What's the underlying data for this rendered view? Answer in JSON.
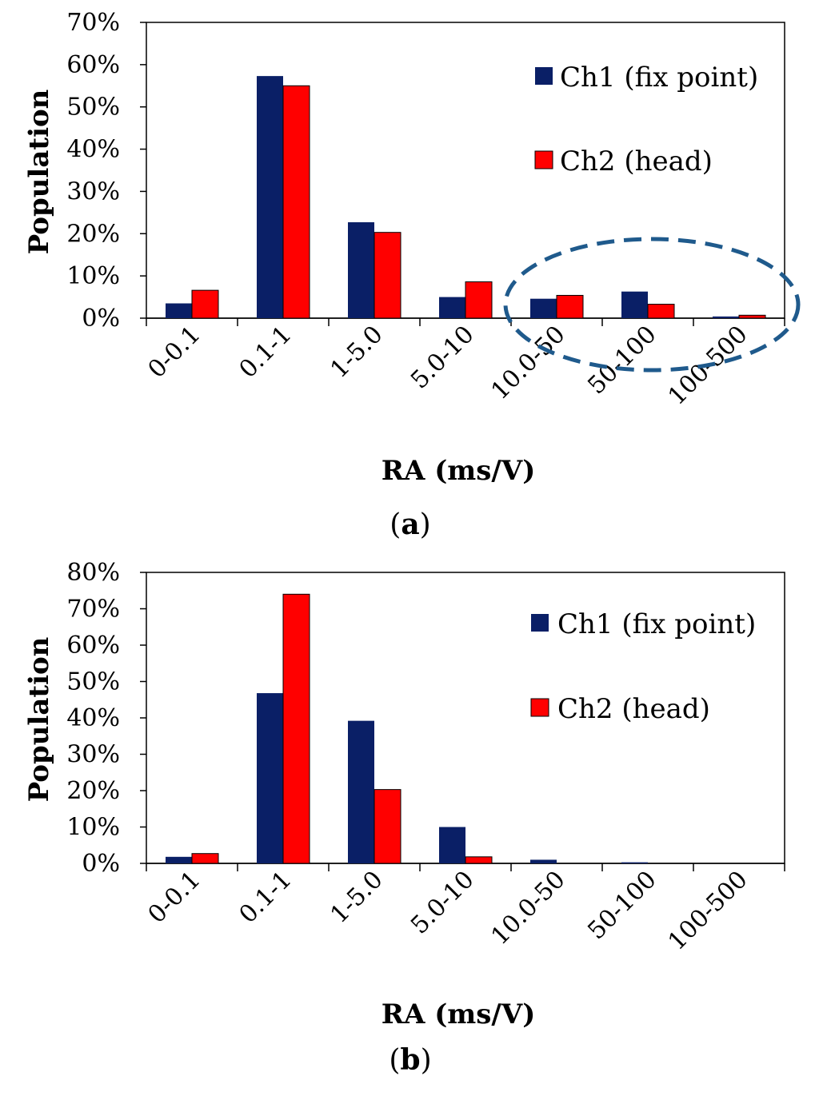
{
  "chart_data": [
    {
      "id": "a",
      "type": "bar",
      "caption_label": "a",
      "categories": [
        "0-0.1",
        "0.1-1",
        "1-5.0",
        "5.0-10",
        "10.0-50",
        "50-100",
        "100-500"
      ],
      "series": [
        {
          "name": "Ch1 (fix point)",
          "color": "#0a1f66",
          "values": [
            3.5,
            57.3,
            22.7,
            5.0,
            4.6,
            6.3,
            0.4
          ]
        },
        {
          "name": "Ch2 (head)",
          "color": "#ff0000",
          "values": [
            6.6,
            55.0,
            20.3,
            8.6,
            5.4,
            3.3,
            0.7
          ]
        }
      ],
      "yticks": [
        "0%",
        "10%",
        "20%",
        "30%",
        "40%",
        "50%",
        "60%",
        "70%"
      ],
      "ylim": [
        0,
        70
      ],
      "ylabel": "Population",
      "xlabel": "RA (ms/V)",
      "legend_position": "top-right",
      "annotation": "dashed ellipse highlighting 10.0-50, 50-100 and 100-500"
    },
    {
      "id": "b",
      "type": "bar",
      "caption_label": "b",
      "categories": [
        "0-0.1",
        "0.1-1",
        "1-5.0",
        "5.0-10",
        "10.0-50",
        "50-100",
        "100-500"
      ],
      "series": [
        {
          "name": "Ch1 (fix point)",
          "color": "#0a1f66",
          "values": [
            1.8,
            46.8,
            39.2,
            10.0,
            1.0,
            0.3,
            0.0
          ]
        },
        {
          "name": "Ch2 (head)",
          "color": "#ff0000",
          "values": [
            2.7,
            74.0,
            20.3,
            1.8,
            0.0,
            0.0,
            0.0
          ]
        }
      ],
      "yticks": [
        "0%",
        "10%",
        "20%",
        "30%",
        "40%",
        "50%",
        "60%",
        "70%",
        "80%"
      ],
      "ylim": [
        0,
        80
      ],
      "ylabel": "Population",
      "xlabel": "RA (ms/V)",
      "legend_position": "top-right"
    }
  ]
}
